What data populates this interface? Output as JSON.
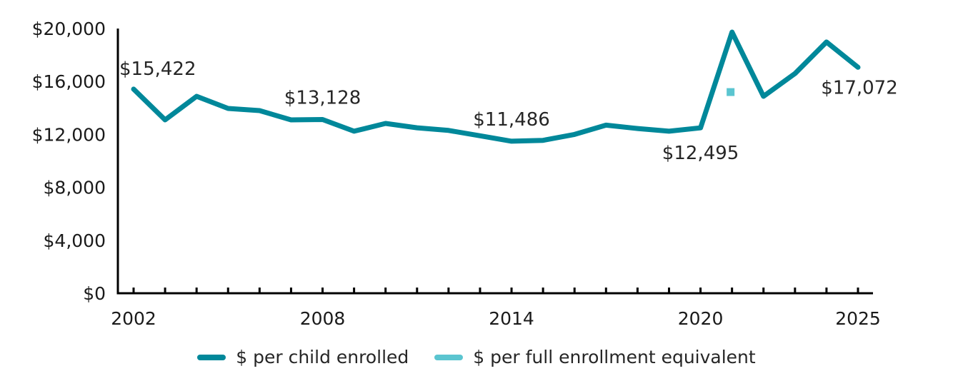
{
  "chart_data": {
    "type": "line",
    "title": "",
    "xlabel": "",
    "ylabel": "",
    "x": [
      2002,
      2003,
      2004,
      2005,
      2006,
      2007,
      2008,
      2009,
      2010,
      2011,
      2012,
      2013,
      2014,
      2015,
      2016,
      2017,
      2018,
      2019,
      2020,
      2021,
      2022,
      2023,
      2024,
      2025
    ],
    "xlim": [
      2002,
      2025
    ],
    "ylim": [
      0,
      20000
    ],
    "grid": false,
    "yticks": [
      0,
      4000,
      8000,
      12000,
      16000,
      20000
    ],
    "ytick_labels": [
      "$0",
      "$4,000",
      "$8,000",
      "$12,000",
      "$16,000",
      "$20,000"
    ],
    "xticks": [
      2002,
      2008,
      2014,
      2020,
      2025
    ],
    "xtick_labels": [
      "2002",
      "2008",
      "2014",
      "2020",
      "2025"
    ],
    "series": [
      {
        "name": "$ per child enrolled",
        "color": "#00889A",
        "style": "line",
        "values": [
          15422,
          13100,
          14880,
          13960,
          13800,
          13100,
          13128,
          12240,
          12830,
          12500,
          12300,
          11900,
          11486,
          11550,
          12000,
          12700,
          12450,
          12240,
          12495,
          19730,
          14880,
          16600,
          18980,
          17072
        ]
      },
      {
        "name": "$ per full enrollment equivalent",
        "color": "#5BC5D0",
        "style": "marker",
        "x": [
          2021
        ],
        "values": [
          15200
        ]
      }
    ],
    "annotations": [
      {
        "x": 2002,
        "value": 15422,
        "text": "$15,422",
        "position": "above"
      },
      {
        "x": 2008,
        "value": 13128,
        "text": "$13,128",
        "position": "above"
      },
      {
        "x": 2014,
        "value": 11486,
        "text": "$11,486",
        "position": "above"
      },
      {
        "x": 2020,
        "value": 12495,
        "text": "$12,495",
        "position": "below"
      },
      {
        "x": 2025,
        "value": 17072,
        "text": "$17,072",
        "position": "below"
      }
    ],
    "legend": {
      "placement": "bottom",
      "items": [
        "$ per child enrolled",
        "$ per full enrollment equivalent"
      ]
    }
  }
}
